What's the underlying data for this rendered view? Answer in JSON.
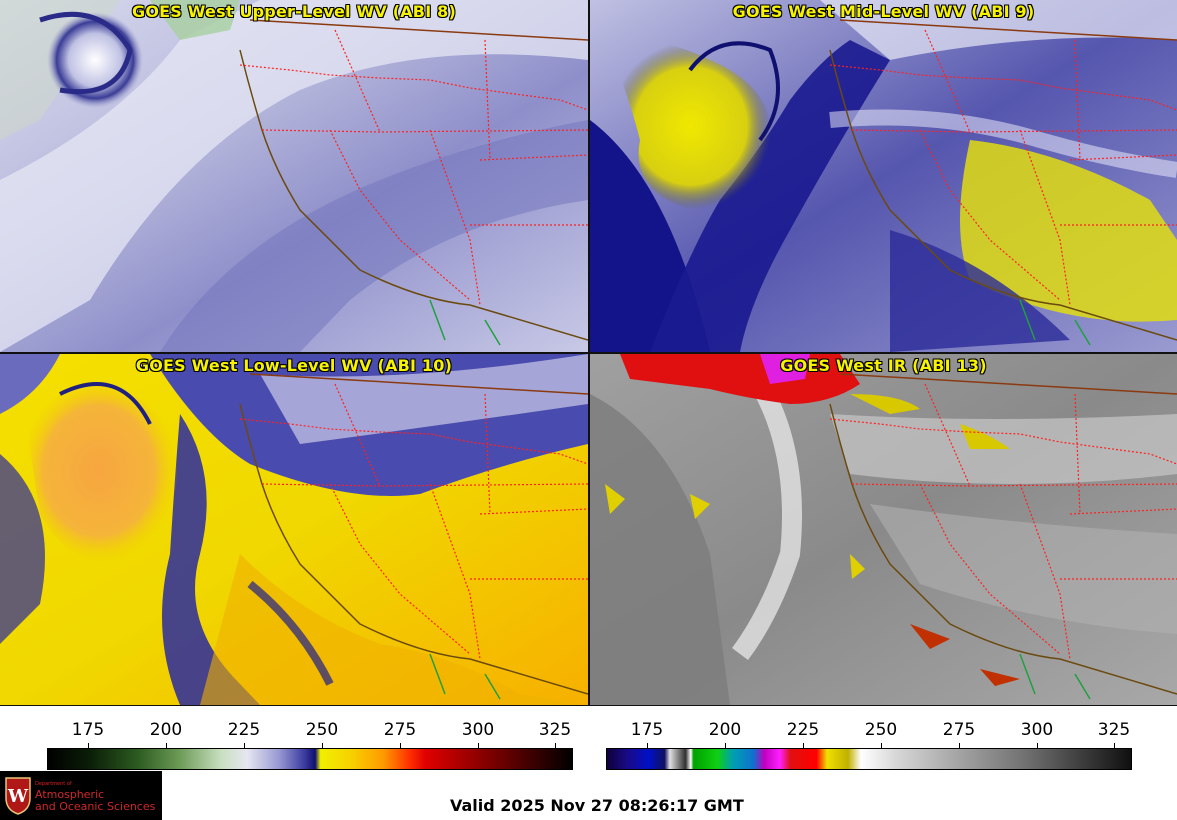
{
  "panels": [
    {
      "title": "GOES West Upper-Level WV (ABI 8)"
    },
    {
      "title": "GOES West Mid-Level WV (ABI 9)"
    },
    {
      "title": "GOES West Low-Level WV (ABI 10)"
    },
    {
      "title": "GOES West IR (ABI 13)"
    }
  ],
  "colorbars": {
    "left": {
      "ticks": [
        "175",
        "200",
        "225",
        "250",
        "275",
        "300",
        "325"
      ]
    },
    "right": {
      "ticks": [
        "175",
        "200",
        "225",
        "250",
        "275",
        "300",
        "325"
      ]
    }
  },
  "logo": {
    "dept_small": "Department of",
    "line1": "Atmospheric",
    "line2": "and Oceanic Sciences"
  },
  "valid_time": "Valid 2025 Nov 27 08:26:17 GMT",
  "colors": {
    "title_yellow": "#f6f200",
    "state_border": "#ff2020",
    "coastline": "#6b4a10",
    "intl_border": "#8a3a10"
  }
}
